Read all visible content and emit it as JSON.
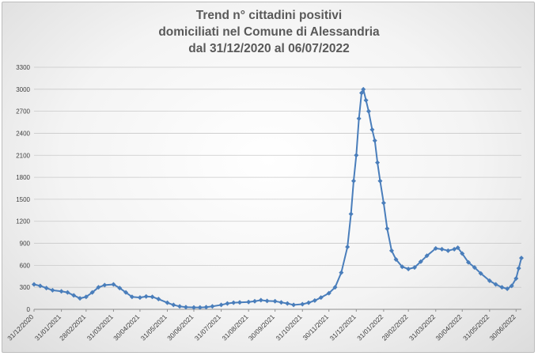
{
  "chart_data": {
    "type": "line",
    "title_lines": [
      "Trend n° cittadini positivi",
      "domiciliati nel Comune di Alessandria",
      "dal 31/12/2020 al 06/07/2022"
    ],
    "xlabel": "",
    "ylabel": "",
    "ylim": [
      0,
      3300
    ],
    "y_ticks": [
      0,
      300,
      600,
      900,
      1200,
      1500,
      1800,
      2100,
      2400,
      2700,
      3000,
      3300
    ],
    "x_ticks": [
      "31/12/2020",
      "31/01/2021",
      "28/02/2021",
      "31/03/2021",
      "30/04/2021",
      "31/05/2021",
      "30/06/2021",
      "31/07/2021",
      "31/08/2021",
      "30/09/2021",
      "31/10/2021",
      "30/11/2021",
      "31/12/2021",
      "31/01/2022",
      "28/02/2022",
      "31/03/2022",
      "30/04/2022",
      "31/05/2022",
      "30/06/2022"
    ],
    "grid": true,
    "legend": "none",
    "series_color": "#4a7ebb",
    "series": [
      {
        "points": [
          [
            "31/12/2020",
            340
          ],
          [
            "07/01/2021",
            320
          ],
          [
            "14/01/2021",
            290
          ],
          [
            "21/01/2021",
            260
          ],
          [
            "31/01/2021",
            245
          ],
          [
            "07/02/2021",
            230
          ],
          [
            "14/02/2021",
            190
          ],
          [
            "21/02/2021",
            150
          ],
          [
            "28/02/2021",
            170
          ],
          [
            "07/03/2021",
            230
          ],
          [
            "14/03/2021",
            300
          ],
          [
            "21/03/2021",
            330
          ],
          [
            "31/03/2021",
            340
          ],
          [
            "07/04/2021",
            290
          ],
          [
            "14/04/2021",
            230
          ],
          [
            "21/04/2021",
            170
          ],
          [
            "30/04/2021",
            160
          ],
          [
            "07/05/2021",
            175
          ],
          [
            "14/05/2021",
            170
          ],
          [
            "21/05/2021",
            140
          ],
          [
            "31/05/2021",
            90
          ],
          [
            "07/06/2021",
            60
          ],
          [
            "14/06/2021",
            40
          ],
          [
            "21/06/2021",
            30
          ],
          [
            "30/06/2021",
            25
          ],
          [
            "07/07/2021",
            25
          ],
          [
            "14/07/2021",
            30
          ],
          [
            "21/07/2021",
            40
          ],
          [
            "31/07/2021",
            60
          ],
          [
            "07/08/2021",
            80
          ],
          [
            "14/08/2021",
            90
          ],
          [
            "21/08/2021",
            95
          ],
          [
            "31/08/2021",
            100
          ],
          [
            "07/09/2021",
            110
          ],
          [
            "14/09/2021",
            125
          ],
          [
            "21/09/2021",
            115
          ],
          [
            "30/09/2021",
            110
          ],
          [
            "07/10/2021",
            95
          ],
          [
            "14/10/2021",
            80
          ],
          [
            "21/10/2021",
            60
          ],
          [
            "31/10/2021",
            70
          ],
          [
            "07/11/2021",
            90
          ],
          [
            "14/11/2021",
            120
          ],
          [
            "21/11/2021",
            160
          ],
          [
            "30/11/2021",
            220
          ],
          [
            "07/12/2021",
            300
          ],
          [
            "14/12/2021",
            500
          ],
          [
            "21/12/2021",
            850
          ],
          [
            "25/12/2021",
            1300
          ],
          [
            "28/12/2021",
            1750
          ],
          [
            "31/12/2021",
            2100
          ],
          [
            "03/01/2022",
            2600
          ],
          [
            "06/01/2022",
            2950
          ],
          [
            "08/01/2022",
            3000
          ],
          [
            "11/01/2022",
            2850
          ],
          [
            "14/01/2022",
            2700
          ],
          [
            "18/01/2022",
            2450
          ],
          [
            "21/01/2022",
            2300
          ],
          [
            "24/01/2022",
            2000
          ],
          [
            "27/01/2022",
            1750
          ],
          [
            "31/01/2022",
            1450
          ],
          [
            "04/02/2022",
            1100
          ],
          [
            "09/02/2022",
            800
          ],
          [
            "14/02/2022",
            680
          ],
          [
            "21/02/2022",
            580
          ],
          [
            "28/02/2022",
            550
          ],
          [
            "07/03/2022",
            570
          ],
          [
            "14/03/2022",
            650
          ],
          [
            "21/03/2022",
            730
          ],
          [
            "31/03/2022",
            830
          ],
          [
            "07/04/2022",
            820
          ],
          [
            "14/04/2022",
            800
          ],
          [
            "21/04/2022",
            820
          ],
          [
            "25/04/2022",
            840
          ],
          [
            "30/04/2022",
            760
          ],
          [
            "07/05/2022",
            640
          ],
          [
            "14/05/2022",
            570
          ],
          [
            "21/05/2022",
            490
          ],
          [
            "31/05/2022",
            390
          ],
          [
            "07/06/2022",
            340
          ],
          [
            "14/06/2022",
            300
          ],
          [
            "20/06/2022",
            280
          ],
          [
            "25/06/2022",
            320
          ],
          [
            "30/06/2022",
            420
          ],
          [
            "03/07/2022",
            560
          ],
          [
            "06/07/2022",
            700
          ]
        ]
      }
    ]
  }
}
